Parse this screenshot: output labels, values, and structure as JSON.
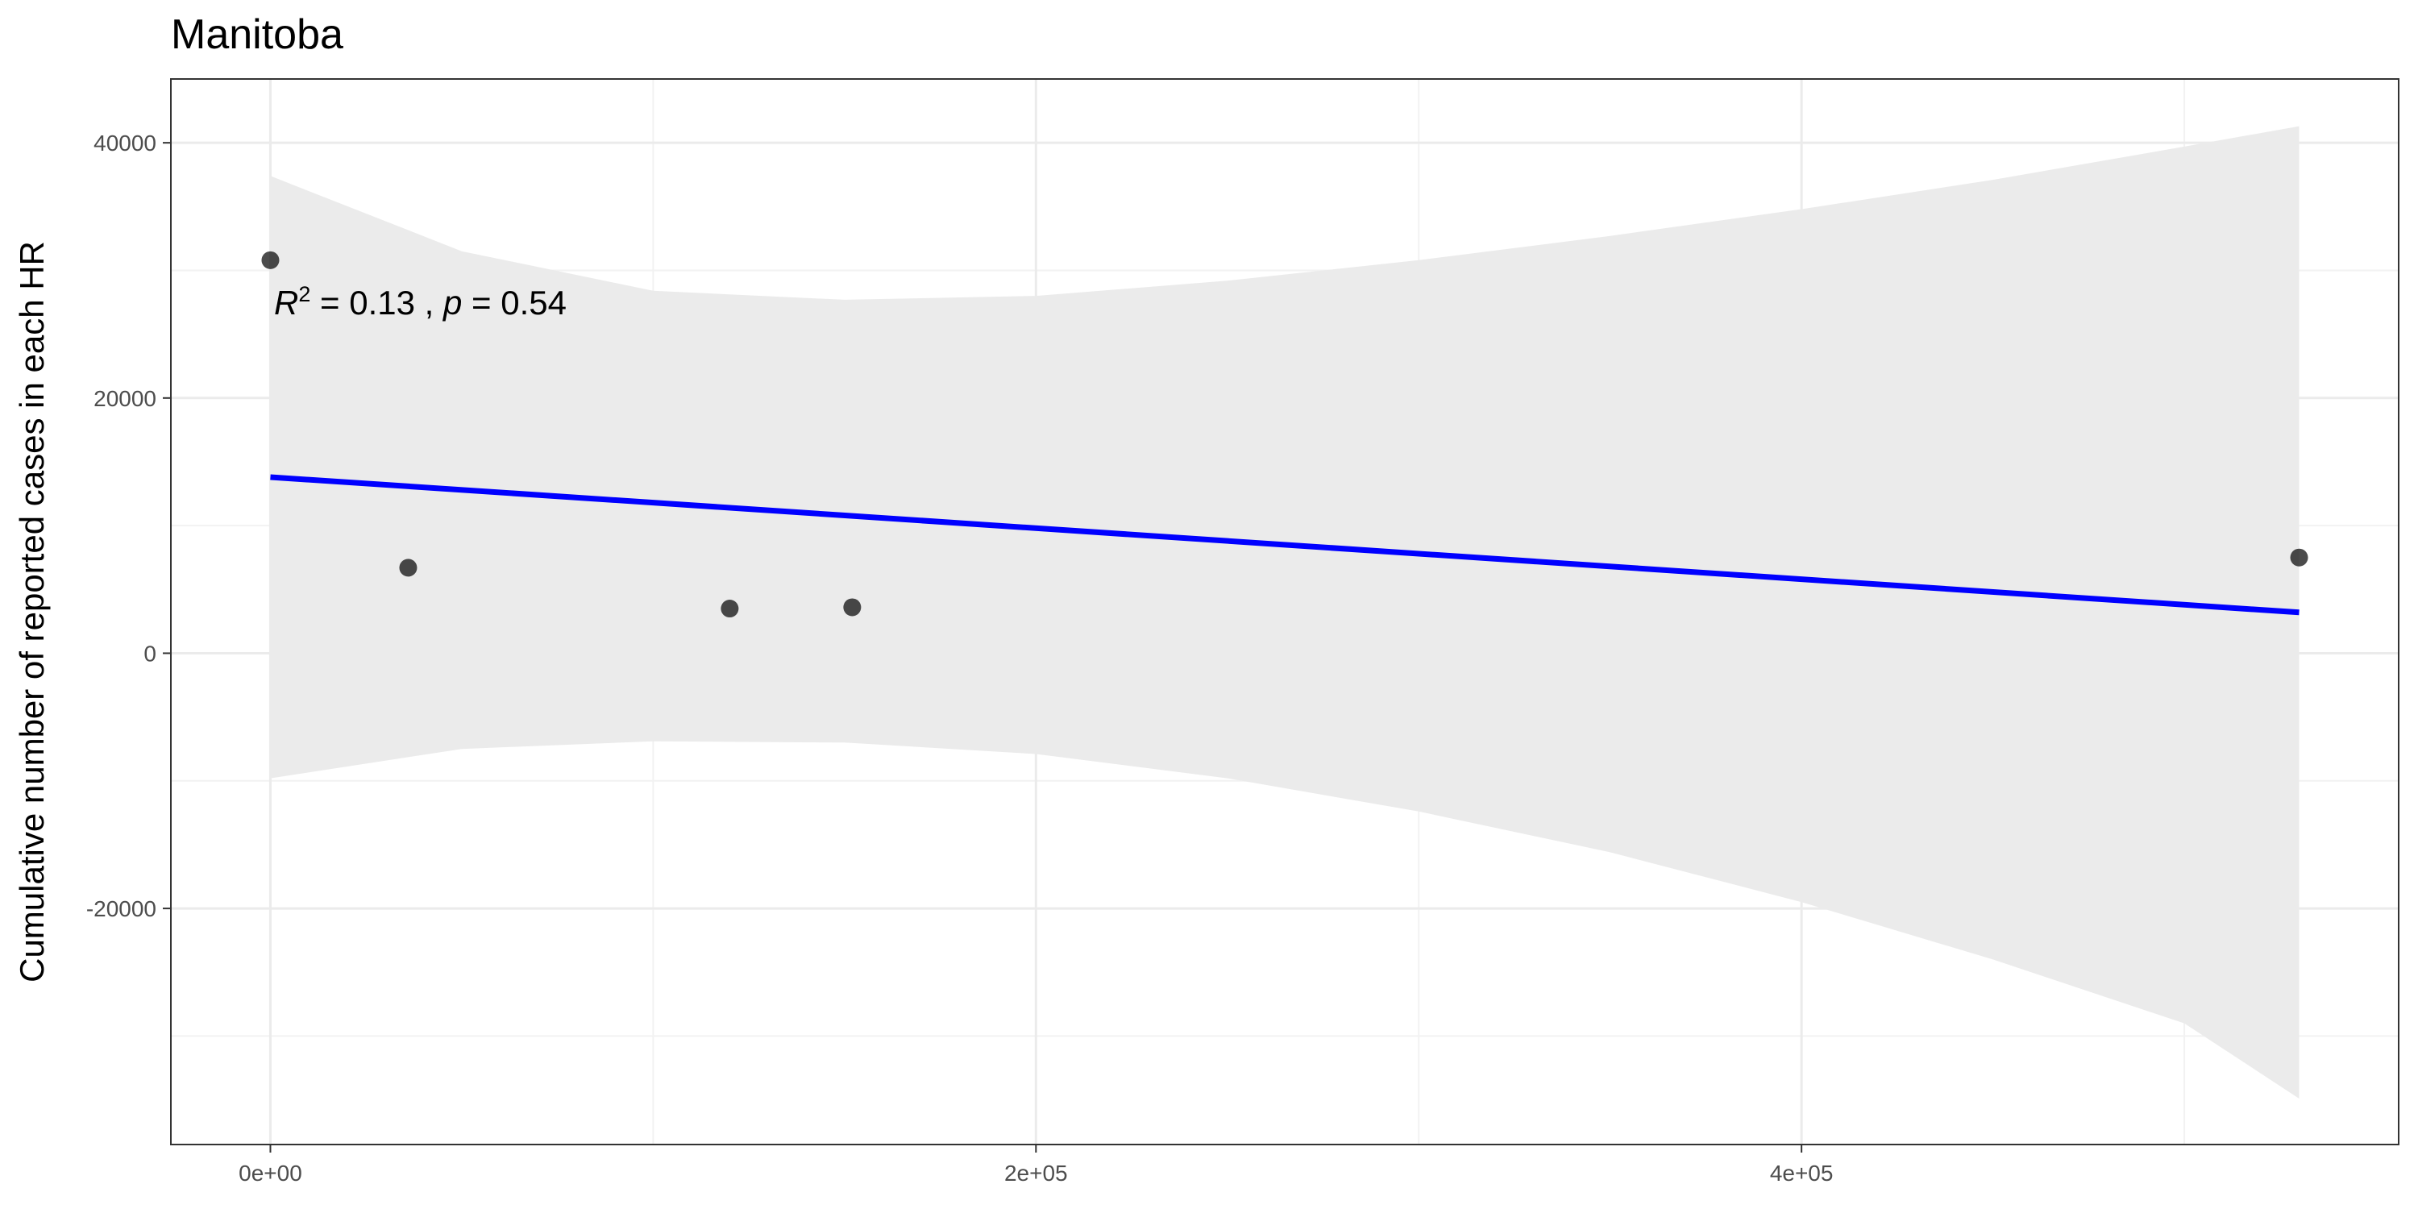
{
  "chart_data": {
    "type": "scatter",
    "title": "Manitoba",
    "xlabel": "",
    "ylabel": "Cumulative number of reported cases in each HR",
    "xlim": [
      -26000,
      556000
    ],
    "ylim": [
      -38500,
      45000
    ],
    "x_ticks": [
      0,
      200000,
      400000
    ],
    "x_tick_labels": [
      "0e+00",
      "2e+05",
      "4e+05"
    ],
    "x_minor_ticks": [
      100000,
      300000,
      500000
    ],
    "y_ticks": [
      -20000,
      0,
      20000,
      40000
    ],
    "y_tick_labels": [
      "-20000",
      "0",
      "20000",
      "40000"
    ],
    "y_minor_ticks": [
      -30000,
      -10000,
      10000,
      30000
    ],
    "grid": true,
    "points": [
      {
        "x": 0,
        "y": 30800
      },
      {
        "x": 36000,
        "y": 6700
      },
      {
        "x": 120000,
        "y": 3500
      },
      {
        "x": 152000,
        "y": 3600
      },
      {
        "x": 530000,
        "y": 7500
      }
    ],
    "regression_line": {
      "x": [
        0,
        530000
      ],
      "y": [
        13800,
        3200
      ],
      "color": "#0000ff"
    },
    "confidence_band": {
      "x": [
        0,
        50000,
        100000,
        150000,
        200000,
        250000,
        300000,
        350000,
        400000,
        450000,
        500000,
        530000
      ],
      "upper": [
        37400,
        31500,
        28400,
        27700,
        28000,
        29200,
        30800,
        32700,
        34800,
        37100,
        39700,
        41300
      ],
      "lower": [
        -9800,
        -7500,
        -6900,
        -7000,
        -7900,
        -9800,
        -12400,
        -15600,
        -19500,
        -24000,
        -29000,
        -34900
      ],
      "color": "#ebebeb"
    },
    "annotation": {
      "r_label": "R",
      "r_sup": "2",
      "r_rest": " = 0.13 , ",
      "p_label": "p",
      "p_rest": " = 0.54"
    }
  }
}
